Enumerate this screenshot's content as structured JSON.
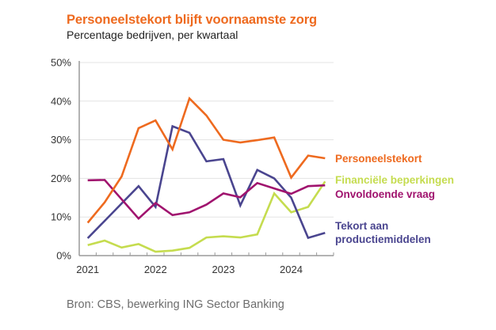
{
  "header": {
    "title": "Personeelstekort blijft voornaamste zorg",
    "subtitle": "Percentage bedrijven, per kwartaal"
  },
  "footer": {
    "source": "Bron: CBS, bewerking ING Sector Banking"
  },
  "chart_data": {
    "type": "line",
    "title": "Personeelstekort blijft voornaamste zorg",
    "subtitle": "Percentage bedrijven, per kwartaal",
    "xlabel": "",
    "ylabel": "",
    "x": [
      "2021Q1",
      "2021Q2",
      "2021Q3",
      "2021Q4",
      "2022Q1",
      "2022Q2",
      "2022Q3",
      "2022Q4",
      "2023Q1",
      "2023Q2",
      "2023Q3",
      "2023Q4",
      "2024Q1",
      "2024Q2",
      "2024Q3"
    ],
    "x_tick_labels": [
      "2021",
      "2022",
      "2023",
      "2024"
    ],
    "y_tick_labels": [
      "0%",
      "10%",
      "20%",
      "30%",
      "40%",
      "50%"
    ],
    "y_ticks": [
      0,
      10,
      20,
      30,
      40,
      50
    ],
    "ylim": [
      0,
      50
    ],
    "grid": true,
    "legend_placement": "right (direct labels at line ends)",
    "series": [
      {
        "name": "Personeelstekort",
        "color": "#ee6a1f",
        "values": [
          8.5,
          13.8,
          20.5,
          33.0,
          35.0,
          27.5,
          40.7,
          36.3,
          30.0,
          29.3,
          29.9,
          30.6,
          20.2,
          25.9,
          25.2
        ]
      },
      {
        "name": "Financiële beperkingen",
        "color": "#c5dc4f",
        "values": [
          2.7,
          3.9,
          2.1,
          3.0,
          1.0,
          1.3,
          2.0,
          4.7,
          5.0,
          4.7,
          5.5,
          16.1,
          11.2,
          12.6,
          19.2
        ]
      },
      {
        "name": "Onvoldoende vraag",
        "color": "#a0136e",
        "values": [
          19.5,
          19.6,
          14.6,
          9.6,
          13.6,
          10.5,
          11.2,
          13.2,
          16.1,
          15.1,
          18.8,
          17.4,
          16.0,
          18.0,
          18.2
        ]
      },
      {
        "name": "Tekort aan productiemiddelen",
        "label_lines": [
          "Tekort aan",
          "productiemiddelen"
        ],
        "color": "#4a458f",
        "values": [
          4.5,
          9.0,
          13.5,
          18.0,
          12.6,
          33.5,
          31.8,
          24.4,
          25.0,
          13.0,
          22.2,
          20.0,
          15.0,
          4.6,
          5.9
        ]
      }
    ]
  }
}
